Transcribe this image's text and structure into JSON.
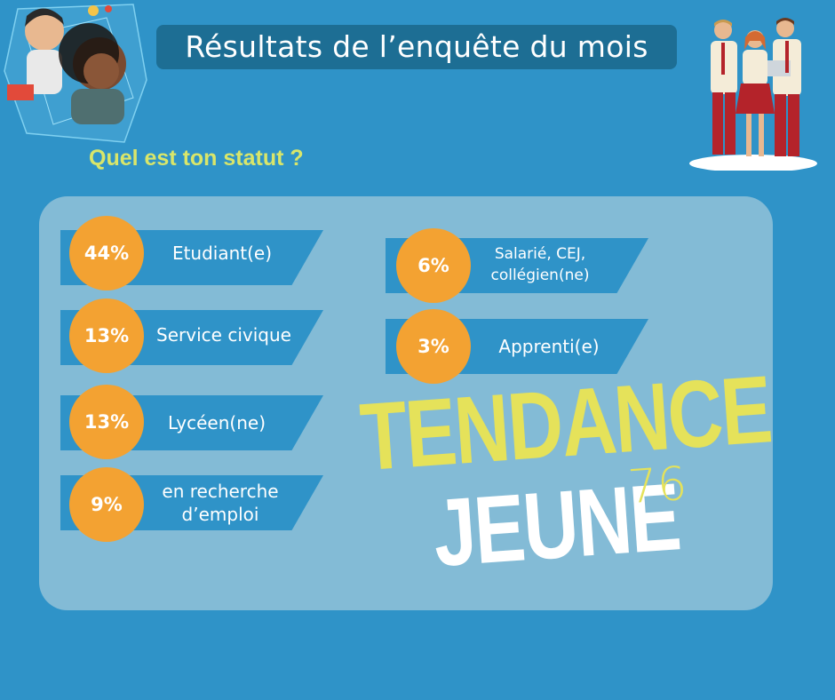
{
  "header": {
    "title": "Résultats de l’enquête du mois"
  },
  "question": "Quel est ton statut ?",
  "results": [
    {
      "percent": "44%",
      "label": "Etudiant(e)"
    },
    {
      "percent": "13%",
      "label": "Service civique"
    },
    {
      "percent": "13%",
      "label": "Lycéen(ne)"
    },
    {
      "percent": "9%",
      "label_line1": "en recherche",
      "label_line2": "d’emploi"
    },
    {
      "percent": "6%",
      "label_line1": "Salarié, CEJ,",
      "label_line2": "collégien(ne)"
    },
    {
      "percent": "3%",
      "label": "Apprenti(e)"
    }
  ],
  "logo": {
    "line1": "TENDANCE",
    "line2": "JEUNE",
    "number": "76"
  },
  "colors": {
    "background": "#2f93c8",
    "panel": "#83bbd6",
    "title_pill": "#1d6e94",
    "percent_circle": "#f3a232",
    "question_text": "#d9e66a",
    "logo_yellow": "#e5e25a"
  }
}
